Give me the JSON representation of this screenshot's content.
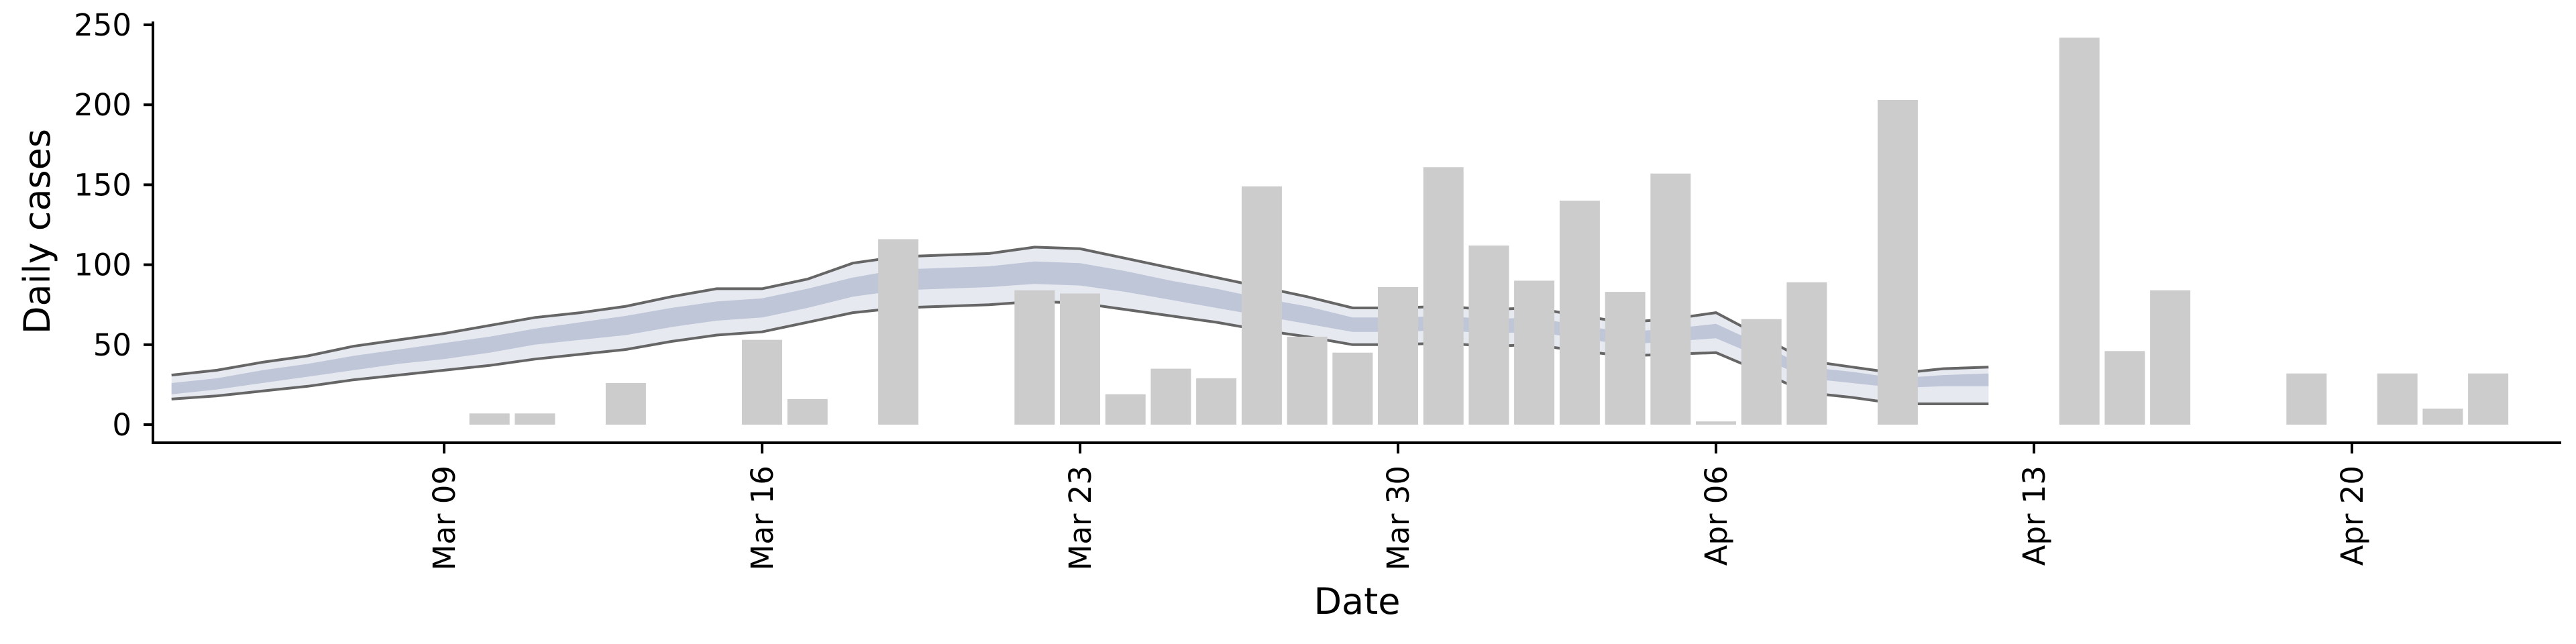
{
  "chart_data": {
    "type": "bar",
    "xlabel": "Date",
    "ylabel": "Daily cases",
    "x_ticks": [
      "Mar 09",
      "Mar 16",
      "Mar 23",
      "Mar 30",
      "Apr 06",
      "Apr 13",
      "Apr 20"
    ],
    "y_ticks": [
      "0",
      "50",
      "100",
      "150",
      "200",
      "250"
    ],
    "ylim": [
      -10,
      255
    ],
    "grid": false,
    "colors": {
      "bars": "#cccccc",
      "ribbon_outer": "#e7e9f1",
      "ribbon_inner": "#bfc6d8",
      "bounds_line": "#666666",
      "projection_fill": "#f0f1f5"
    },
    "bars": {
      "dates": [
        "Mar 10",
        "Mar 11",
        "Mar 13",
        "Mar 16",
        "Mar 17",
        "Mar 19",
        "Mar 22",
        "Mar 23",
        "Mar 24",
        "Mar 25",
        "Mar 26",
        "Mar 27",
        "Mar 28",
        "Mar 29",
        "Mar 30",
        "Mar 31",
        "Apr 01",
        "Apr 02",
        "Apr 03",
        "Apr 04",
        "Apr 05",
        "Apr 06",
        "Apr 07",
        "Apr 08",
        "Apr 10",
        "Apr 14",
        "Apr 15",
        "Apr 16",
        "Apr 19",
        "Apr 21",
        "Apr 22",
        "Apr 23"
      ],
      "values": [
        7,
        7,
        26,
        53,
        16,
        116,
        84,
        82,
        19,
        35,
        29,
        149,
        55,
        45,
        86,
        161,
        112,
        90,
        140,
        83,
        157,
        2,
        66,
        89,
        203,
        242,
        46,
        84,
        32,
        32,
        10,
        32
      ]
    },
    "estimate": {
      "dates": [
        "Mar 03",
        "Mar 04",
        "Mar 05",
        "Mar 06",
        "Mar 07",
        "Mar 08",
        "Mar 09",
        "Mar 10",
        "Mar 11",
        "Mar 12",
        "Mar 13",
        "Mar 14",
        "Mar 15",
        "Mar 16",
        "Mar 17",
        "Mar 18",
        "Mar 19",
        "Mar 20",
        "Mar 21",
        "Mar 22",
        "Mar 23",
        "Mar 24",
        "Mar 25",
        "Mar 26",
        "Mar 27",
        "Mar 28",
        "Mar 29",
        "Mar 30",
        "Mar 31",
        "Apr 01",
        "Apr 02",
        "Apr 03",
        "Apr 04",
        "Apr 05",
        "Apr 06",
        "Apr 07",
        "Apr 08",
        "Apr 09",
        "Apr 10",
        "Apr 11",
        "Apr 12"
      ],
      "upper": [
        31,
        34,
        39,
        43,
        49,
        53,
        57,
        62,
        67,
        70,
        74,
        80,
        85,
        85,
        91,
        101,
        105,
        106,
        107,
        111,
        110,
        104,
        98,
        92,
        86,
        80,
        73,
        73,
        74,
        72,
        73,
        68,
        64,
        66,
        70,
        55,
        40,
        36,
        32,
        35,
        36
      ],
      "inner_upper": [
        26,
        29,
        34,
        38,
        43,
        47,
        51,
        55,
        60,
        64,
        68,
        73,
        77,
        79,
        85,
        92,
        97,
        98,
        99,
        102,
        101,
        96,
        90,
        85,
        79,
        74,
        67,
        67,
        68,
        66,
        67,
        62,
        58,
        60,
        63,
        50,
        36,
        33,
        29,
        31,
        32
      ],
      "inner_lower": [
        19,
        22,
        26,
        30,
        34,
        38,
        41,
        45,
        50,
        53,
        56,
        61,
        65,
        67,
        73,
        80,
        84,
        85,
        86,
        88,
        87,
        83,
        78,
        73,
        68,
        63,
        58,
        58,
        59,
        57,
        58,
        54,
        50,
        52,
        54,
        42,
        29,
        26,
        23,
        24,
        24
      ],
      "lower": [
        16,
        18,
        21,
        24,
        28,
        31,
        34,
        37,
        41,
        44,
        47,
        52,
        56,
        58,
        64,
        70,
        73,
        74,
        75,
        77,
        76,
        72,
        68,
        64,
        59,
        55,
        50,
        50,
        51,
        49,
        50,
        46,
        43,
        44,
        45,
        33,
        20,
        17,
        13,
        13,
        13
      ]
    }
  }
}
